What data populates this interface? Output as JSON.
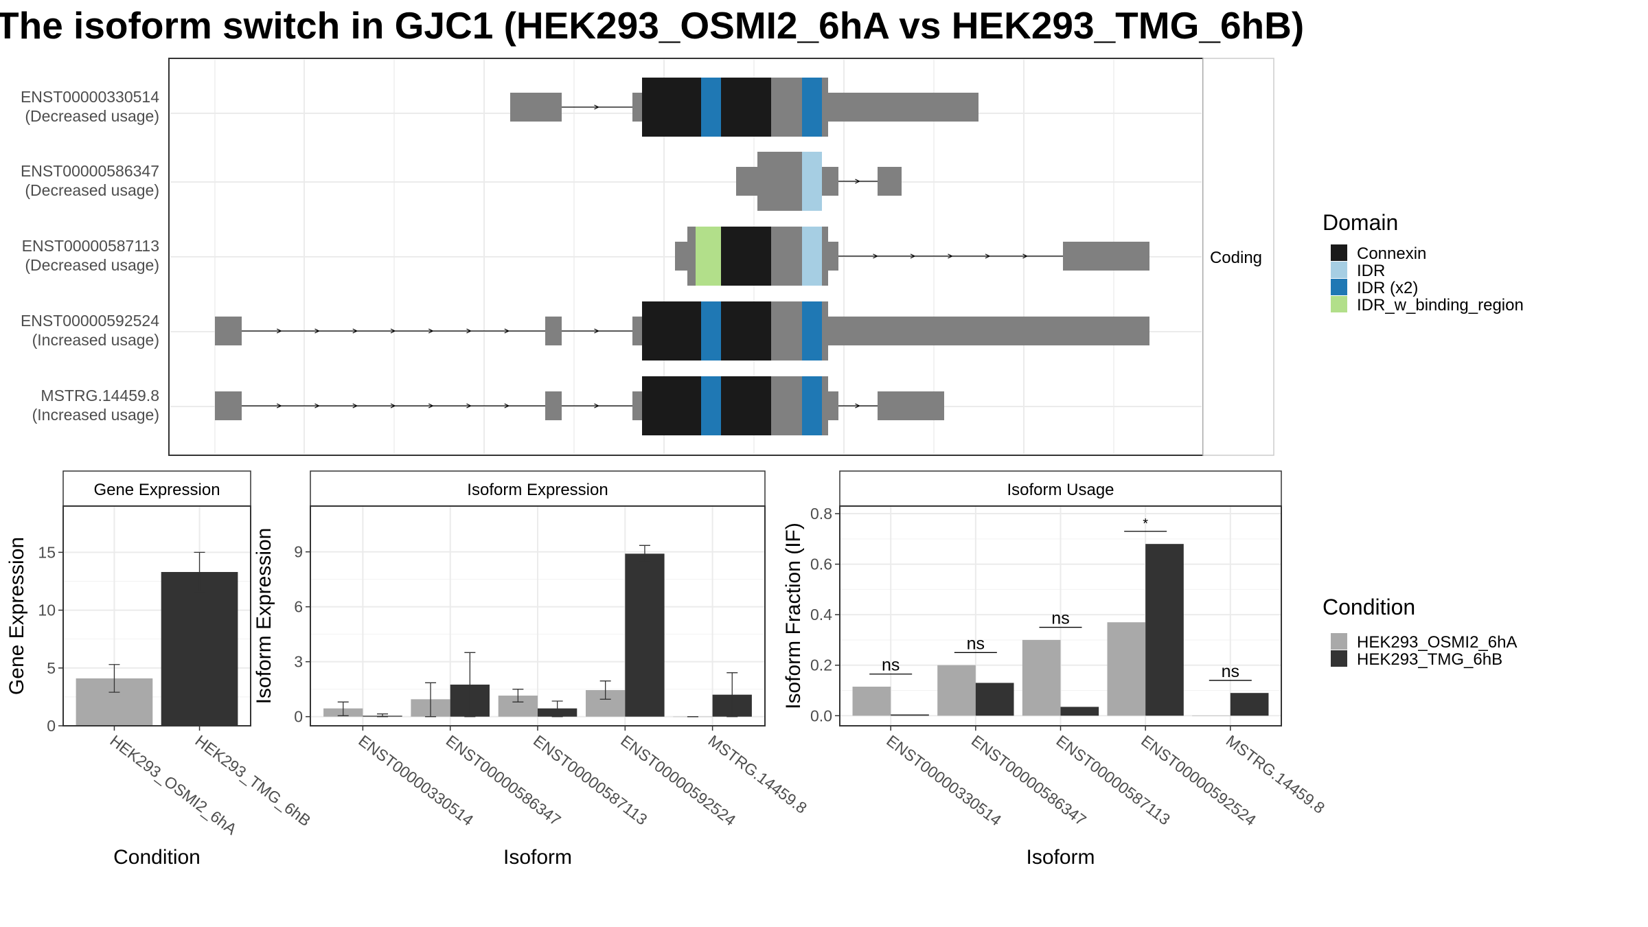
{
  "title": "The isoform switch in GJC1 (HEK293_OSMI2_6hA vs HEK293_TMG_6hB)",
  "structure": {
    "strip_label": "Coding",
    "transcripts": [
      {
        "id": "ENST00000330514",
        "usage": "(Decreased usage)"
      },
      {
        "id": "ENST00000586347",
        "usage": "(Decreased usage)"
      },
      {
        "id": "ENST00000587113",
        "usage": "(Decreased usage)"
      },
      {
        "id": "ENST00000592524",
        "usage": "(Increased usage)"
      },
      {
        "id": "MSTRG.14459.8",
        "usage": "(Increased usage)"
      }
    ]
  },
  "legends": {
    "domain": {
      "title": "Domain",
      "items": [
        {
          "label": "Connexin",
          "color": "#1a1a1a"
        },
        {
          "label": "IDR",
          "color": "#a6cee3"
        },
        {
          "label": "IDR (x2)",
          "color": "#1f78b4"
        },
        {
          "label": "IDR_w_binding_region",
          "color": "#b2df8a"
        }
      ]
    },
    "condition": {
      "title": "Condition",
      "items": [
        {
          "label": "HEK293_OSMI2_6hA",
          "color": "#a9a9a9"
        },
        {
          "label": "HEK293_TMG_6hB",
          "color": "#333333"
        }
      ]
    }
  },
  "chart_data": [
    {
      "type": "bar",
      "title": "Gene Expression",
      "xlabel": "Condition",
      "ylabel": "Gene Expression",
      "ylim": [
        0,
        19
      ],
      "yticks": [
        0,
        5,
        10,
        15
      ],
      "categories": [
        "HEK293_OSMI2_6hA",
        "HEK293_TMG_6hB"
      ],
      "values": [
        4.1,
        13.3
      ],
      "errors": [
        [
          2.9,
          5.3
        ],
        [
          11.6,
          15.0
        ]
      ]
    },
    {
      "type": "bar",
      "title": "Isoform Expression",
      "xlabel": "Isoform",
      "ylabel": "Isoform Expression",
      "ylim": [
        -0.5,
        11.5
      ],
      "yticks": [
        0,
        3,
        6,
        9
      ],
      "categories": [
        "ENST00000330514",
        "ENST00000586347",
        "ENST00000587113",
        "ENST00000592524",
        "MSTRG.14459.8"
      ],
      "series": [
        {
          "name": "HEK293_OSMI2_6hA",
          "values": [
            0.45,
            0.95,
            1.15,
            1.45,
            0.0
          ],
          "errors": [
            [
              0.05,
              0.8
            ],
            [
              0.0,
              1.85
            ],
            [
              0.8,
              1.5
            ],
            [
              0.95,
              1.95
            ],
            [
              0.0,
              0.0
            ]
          ]
        },
        {
          "name": "HEK293_TMG_6hB",
          "values": [
            0.05,
            1.75,
            0.45,
            8.9,
            1.2
          ],
          "errors": [
            [
              0.0,
              0.15
            ],
            [
              0.0,
              3.5
            ],
            [
              0.0,
              0.85
            ],
            [
              8.45,
              9.35
            ],
            [
              0.0,
              2.4
            ]
          ]
        }
      ]
    },
    {
      "type": "bar",
      "title": "Isoform Usage",
      "xlabel": "Isoform",
      "ylabel": "Isoform Fraction (IF)",
      "ylim": [
        -0.04,
        0.83
      ],
      "yticks": [
        0.0,
        0.2,
        0.4,
        0.6,
        0.8
      ],
      "categories": [
        "ENST00000330514",
        "ENST00000586347",
        "ENST00000587113",
        "ENST00000592524",
        "MSTRG.14459.8"
      ],
      "series": [
        {
          "name": "HEK293_OSMI2_6hA",
          "values": [
            0.115,
            0.2,
            0.3,
            0.37,
            0.0
          ]
        },
        {
          "name": "HEK293_TMG_6hB",
          "values": [
            0.005,
            0.13,
            0.035,
            0.68,
            0.09
          ]
        }
      ],
      "annotations": [
        "ns",
        "ns",
        "ns",
        "*",
        "ns"
      ]
    }
  ]
}
